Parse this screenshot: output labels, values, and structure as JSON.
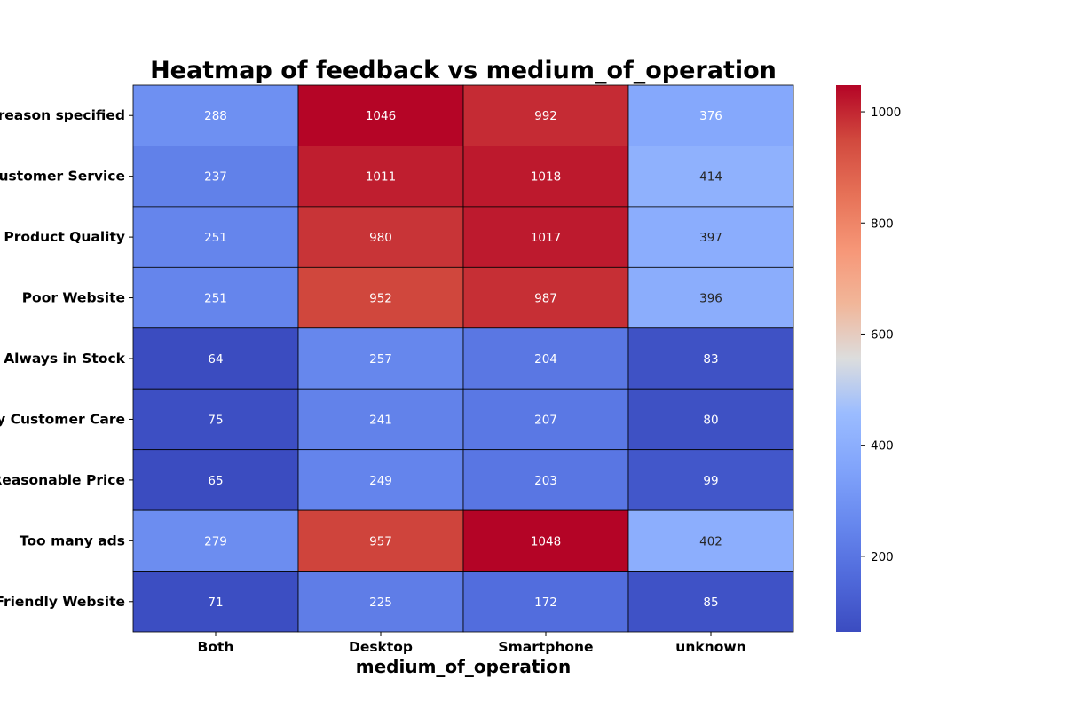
{
  "chart_data": {
    "type": "heatmap",
    "title": "Heatmap of feedback vs medium_of_operation",
    "xlabel": "medium_of_operation",
    "ylabel": "",
    "columns": [
      "Both",
      "Desktop",
      "Smartphone",
      "unknown"
    ],
    "rows": [
      "No reason specified",
      "Poor Customer Service",
      "Poor Product Quality",
      "Poor Website",
      "Always in Stock",
      "Quality Customer Care",
      "Reasonable Price",
      "Too many ads",
      "User Friendly Website"
    ],
    "values": [
      [
        288,
        1046,
        992,
        376
      ],
      [
        237,
        1011,
        1018,
        414
      ],
      [
        251,
        980,
        1017,
        397
      ],
      [
        251,
        952,
        987,
        396
      ],
      [
        64,
        257,
        204,
        83
      ],
      [
        75,
        241,
        207,
        80
      ],
      [
        65,
        249,
        203,
        99
      ],
      [
        279,
        957,
        1048,
        402
      ],
      [
        71,
        225,
        172,
        85
      ]
    ],
    "colormap": "coolwarm",
    "vmin": 64,
    "vmax": 1048,
    "colorbar_ticks": [
      200,
      400,
      600,
      800,
      1000
    ],
    "annotated": true,
    "cell_border_color": "#000000"
  }
}
